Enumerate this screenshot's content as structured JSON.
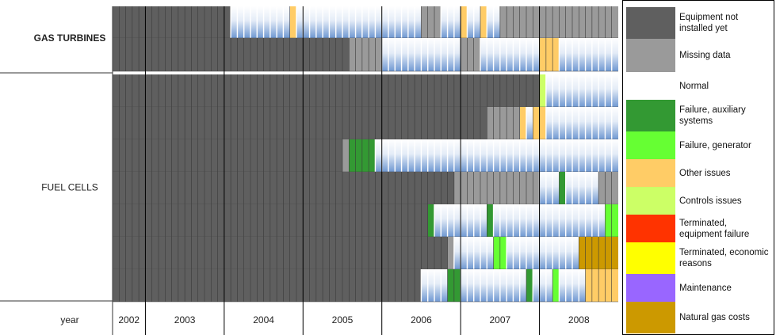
{
  "chart_data": {
    "type": "timeline",
    "x_label": "year",
    "categories": [
      "2002",
      "2003",
      "2004",
      "2005",
      "2006",
      "2007",
      "2008"
    ],
    "statuses": [
      {
        "name": "Equipment not installed yet",
        "color": "#5f5f5f"
      },
      {
        "name": "Missing data",
        "color": "#9a9a9a"
      },
      {
        "name": "Normal",
        "color": "#ffffff"
      },
      {
        "name": "Failure, auxiliary systems",
        "color": "#339933"
      },
      {
        "name": "Failure, generator",
        "color": "#66ff33"
      },
      {
        "name": "Other issues",
        "color": "#ffcc66"
      },
      {
        "name": "Controls issues",
        "color": "#ccff66"
      },
      {
        "name": "Terminated, equipment failure",
        "color": "#ff3300"
      },
      {
        "name": "Terminated, economic reasons",
        "color": "#ffff00"
      },
      {
        "name": "Maintenance",
        "color": "#9966ff"
      },
      {
        "name": "Natural gas costs",
        "color": "#cc9900"
      }
    ],
    "groups": [
      {
        "label": "GAS TURBINES",
        "rows": [
          [
            {
              "status": 0,
              "months": 18
            },
            {
              "status": 2,
              "months": 9
            },
            {
              "status": 5,
              "months": 1
            },
            {
              "status": 2,
              "months": 19
            },
            {
              "status": 1,
              "months": 3
            },
            {
              "status": 2,
              "months": 3
            },
            {
              "status": 5,
              "months": 1
            },
            {
              "status": 2,
              "months": 2
            },
            {
              "status": 5,
              "months": 1
            },
            {
              "status": 2,
              "months": 2
            },
            {
              "status": 1,
              "months": 18
            }
          ],
          [
            {
              "status": 0,
              "months": 36
            },
            {
              "status": 1,
              "months": 5
            },
            {
              "status": 2,
              "months": 12
            },
            {
              "status": 1,
              "months": 3
            },
            {
              "status": 2,
              "months": 9
            },
            {
              "status": 5,
              "months": 3
            },
            {
              "status": 2,
              "months": 9
            }
          ]
        ]
      },
      {
        "label": "FUEL CELLS",
        "rows": [
          [
            {
              "status": 0,
              "months": 65
            },
            {
              "status": 6,
              "months": 1
            },
            {
              "status": 2,
              "months": 11
            }
          ],
          [
            {
              "status": 0,
              "months": 57
            },
            {
              "status": 1,
              "months": 5
            },
            {
              "status": 5,
              "months": 1
            },
            {
              "status": 2,
              "months": 1
            },
            {
              "status": 5,
              "months": 2
            },
            {
              "status": 2,
              "months": 11
            }
          ],
          [
            {
              "status": 0,
              "months": 35
            },
            {
              "status": 1,
              "months": 1
            },
            {
              "status": 3,
              "months": 4
            },
            {
              "status": 2,
              "months": 37
            }
          ],
          [
            {
              "status": 0,
              "months": 52
            },
            {
              "status": 1,
              "months": 13
            },
            {
              "status": 2,
              "months": 3
            },
            {
              "status": 3,
              "months": 1
            },
            {
              "status": 2,
              "months": 5
            },
            {
              "status": 1,
              "months": 3
            }
          ],
          [
            {
              "status": 0,
              "months": 48
            },
            {
              "status": 3,
              "months": 1
            },
            {
              "status": 2,
              "months": 8
            },
            {
              "status": 3,
              "months": 1
            },
            {
              "status": 2,
              "months": 17
            },
            {
              "status": 4,
              "months": 2
            }
          ],
          [
            {
              "status": 0,
              "months": 51
            },
            {
              "status": 1,
              "months": 1
            },
            {
              "status": 2,
              "months": 6
            },
            {
              "status": 4,
              "months": 2
            },
            {
              "status": 2,
              "months": 11
            },
            {
              "status": 10,
              "months": 6
            }
          ],
          [
            {
              "status": 0,
              "months": 47
            },
            {
              "status": 2,
              "months": 4
            },
            {
              "status": 3,
              "months": 2
            },
            {
              "status": 2,
              "months": 10
            },
            {
              "status": 3,
              "months": 1
            },
            {
              "status": 2,
              "months": 3
            },
            {
              "status": 4,
              "months": 1
            },
            {
              "status": 2,
              "months": 4
            },
            {
              "status": 5,
              "months": 5
            }
          ]
        ]
      }
    ]
  }
}
